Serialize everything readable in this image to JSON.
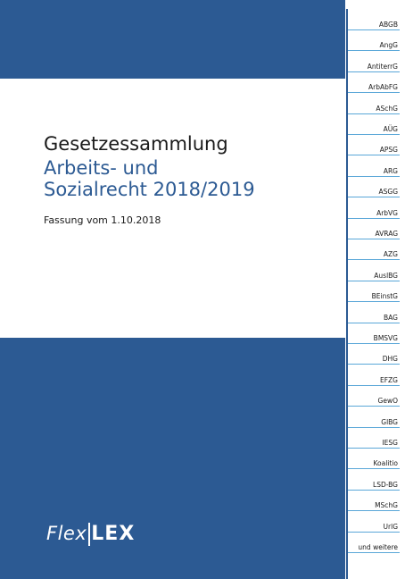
{
  "cover": {
    "title": "Gesetzessammlung",
    "subtitle_line1": "Arbeits- und",
    "subtitle_line2": "Sozialrecht 2018/2019",
    "edition": "Fassung vom 1.10.2018",
    "logo_part1": "Flex",
    "logo_part2": "LEX",
    "brand_color": "#2c5a93",
    "tab_rule_color": "#5aa7d8"
  },
  "tabs": [
    {
      "label": "ABGB"
    },
    {
      "label": "AngG"
    },
    {
      "label": "AntiterrG"
    },
    {
      "label": "ArbAbFG"
    },
    {
      "label": "ASchG"
    },
    {
      "label": "AÜG"
    },
    {
      "label": "APSG"
    },
    {
      "label": "ARG"
    },
    {
      "label": "ASGG"
    },
    {
      "label": "ArbVG"
    },
    {
      "label": "AVRAG"
    },
    {
      "label": "AZG"
    },
    {
      "label": "AuslBG"
    },
    {
      "label": "BEinstG"
    },
    {
      "label": "BAG"
    },
    {
      "label": "BMSVG"
    },
    {
      "label": "DHG"
    },
    {
      "label": "EFZG"
    },
    {
      "label": "GewO"
    },
    {
      "label": "GlBG"
    },
    {
      "label": "IESG"
    },
    {
      "label": "Koalitio"
    },
    {
      "label": "LSD-BG"
    },
    {
      "label": "MSchG"
    },
    {
      "label": "UrlG"
    },
    {
      "label": "und weitere"
    }
  ]
}
